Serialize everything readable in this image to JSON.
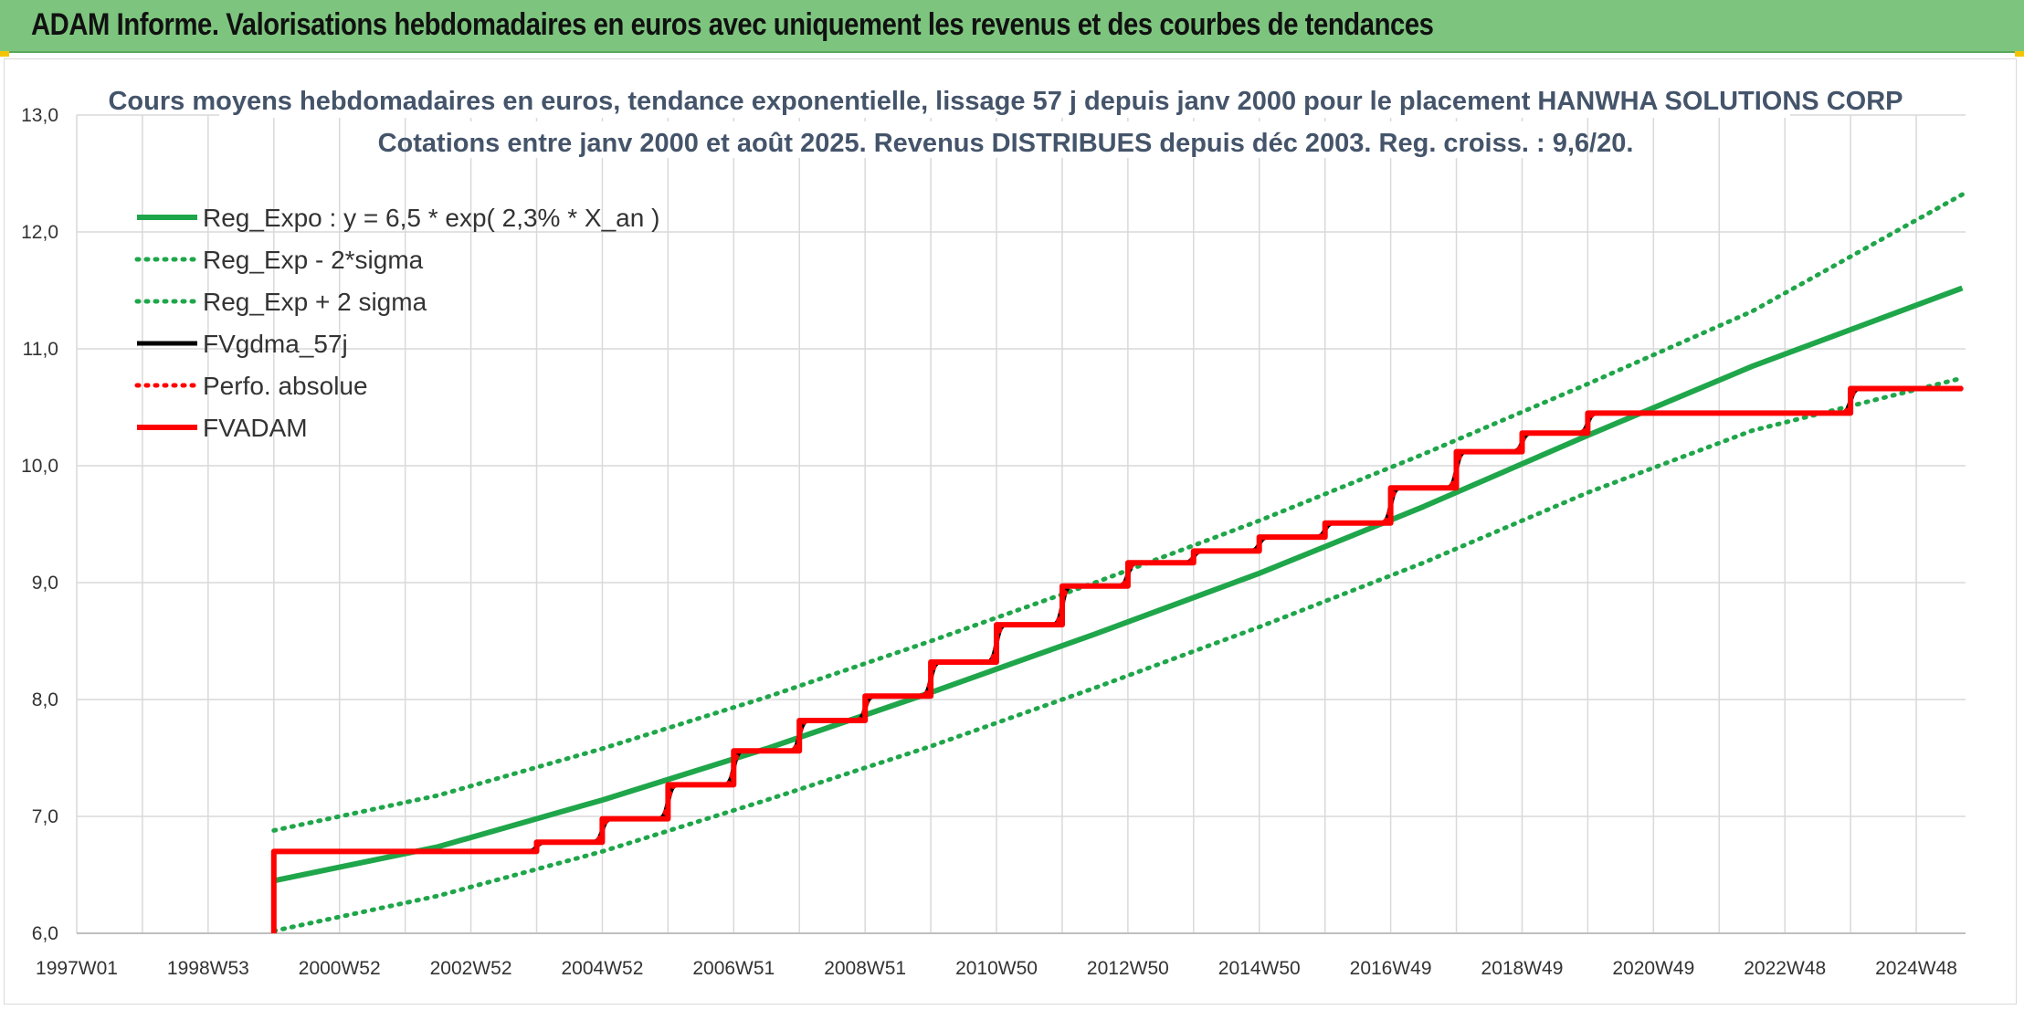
{
  "page": {
    "header_title": "ADAM Informe. Valorisations hebdomadaires en euros avec uniquement les revenus et des courbes de tendances"
  },
  "colors": {
    "header_bg": "#7dc57e",
    "reg_expo": "#1fa64a",
    "fvgdma": "#000000",
    "fvadam": "#ff0000",
    "perfo": "#ff0000",
    "grid": "#d9d9d9",
    "title": "#44546a"
  },
  "chart_data": {
    "type": "line",
    "title_line1": "Cours moyens hebdomadaires en euros, tendance exponentielle, lissage 57 j depuis janv 2000 pour le placement HANWHA SOLUTIONS CORP",
    "title_line2": "Cotations entre janv 2000 et août 2025. Revenus DISTRIBUES depuis déc 2003. Reg. croiss. : 9,6/20.",
    "xlabel": "",
    "ylabel": "",
    "ylim": [
      6.0,
      13.0
    ],
    "y_ticks": [
      "6,0",
      "7,0",
      "8,0",
      "9,0",
      "10,0",
      "11,0",
      "12,0",
      "13,0"
    ],
    "xlim": [
      1997.0,
      2025.75
    ],
    "x_ticks": [
      {
        "label": "1997W01",
        "x": 1997.0
      },
      {
        "label": "1998W53",
        "x": 1999.0
      },
      {
        "label": "2000W52",
        "x": 2001.0
      },
      {
        "label": "2002W52",
        "x": 2003.0
      },
      {
        "label": "2004W52",
        "x": 2005.0
      },
      {
        "label": "2006W51",
        "x": 2007.0
      },
      {
        "label": "2008W51",
        "x": 2009.0
      },
      {
        "label": "2010W50",
        "x": 2011.0
      },
      {
        "label": "2012W50",
        "x": 2013.0
      },
      {
        "label": "2014W50",
        "x": 2015.0
      },
      {
        "label": "2016W49",
        "x": 2017.0
      },
      {
        "label": "2018W49",
        "x": 2019.0
      },
      {
        "label": "2020W49",
        "x": 2021.0
      },
      {
        "label": "2022W48",
        "x": 2023.0
      },
      {
        "label": "2024W48",
        "x": 2025.0
      }
    ],
    "grid": true,
    "legend_position": "top-left",
    "series": [
      {
        "name": "Reg_Expo : y = 6,5 * exp( 2,3% *  X_an )",
        "style": "solid-thick",
        "x": [
          2000.0,
          2002.5,
          2005.0,
          2007.5,
          2010.0,
          2012.5,
          2015.0,
          2017.5,
          2020.0,
          2022.5,
          2025.7
        ],
        "values": [
          6.45,
          6.74,
          7.14,
          7.58,
          8.06,
          8.56,
          9.08,
          9.65,
          10.26,
          10.85,
          11.52
        ]
      },
      {
        "name": "Reg_Exp - 2*sigma",
        "style": "dotted",
        "x": [
          2000.0,
          2002.5,
          2005.0,
          2007.5,
          2010.0,
          2012.5,
          2015.0,
          2017.5,
          2020.0,
          2022.5,
          2025.7
        ],
        "values": [
          6.02,
          6.32,
          6.7,
          7.14,
          7.6,
          8.1,
          8.62,
          9.17,
          9.77,
          10.3,
          10.75
        ]
      },
      {
        "name": "Reg_Exp + 2 sigma",
        "style": "dotted",
        "x": [
          2000.0,
          2002.5,
          2005.0,
          2007.5,
          2010.0,
          2012.5,
          2015.0,
          2017.5,
          2020.0,
          2022.5,
          2025.7
        ],
        "values": [
          6.88,
          7.18,
          7.58,
          8.02,
          8.5,
          9.0,
          9.53,
          10.1,
          10.7,
          11.32,
          12.32
        ]
      },
      {
        "name": "FVgdma_57j",
        "style": "smoothed-step",
        "x": [
          2000.0,
          2004.0,
          2005.0,
          2006.0,
          2007.0,
          2008.0,
          2009.0,
          2010.0,
          2011.0,
          2012.0,
          2013.0,
          2014.0,
          2015.0,
          2016.0,
          2017.0,
          2018.0,
          2019.0,
          2020.0,
          2024.0,
          2025.7
        ],
        "values": [
          6.7,
          6.78,
          6.98,
          7.27,
          7.56,
          7.82,
          8.03,
          8.32,
          8.64,
          8.97,
          9.17,
          9.27,
          9.39,
          9.51,
          9.81,
          10.12,
          10.28,
          10.45,
          10.66,
          10.66
        ]
      },
      {
        "name": "Perfo. absolue",
        "style": "dotted",
        "x": [
          2000.0,
          2004.0,
          2005.0,
          2006.0,
          2007.0,
          2008.0,
          2009.0,
          2010.0,
          2011.0,
          2012.0,
          2013.0,
          2014.0,
          2015.0,
          2016.0,
          2017.0,
          2018.0,
          2019.0,
          2020.0,
          2024.0,
          2025.7
        ],
        "values": [
          6.7,
          6.78,
          6.98,
          7.27,
          7.56,
          7.82,
          8.03,
          8.32,
          8.64,
          8.97,
          9.17,
          9.27,
          9.39,
          9.51,
          9.81,
          10.12,
          10.28,
          10.45,
          10.66,
          10.66
        ]
      },
      {
        "name": "FVADAM",
        "style": "step-thick",
        "start_x": 2000.0,
        "start_value": 6.0,
        "x": [
          2000.0,
          2004.0,
          2005.0,
          2006.0,
          2007.0,
          2008.0,
          2009.0,
          2010.0,
          2011.0,
          2012.0,
          2013.0,
          2014.0,
          2015.0,
          2016.0,
          2017.0,
          2018.0,
          2019.0,
          2020.0,
          2024.0,
          2025.7
        ],
        "values": [
          6.7,
          6.78,
          6.98,
          7.27,
          7.56,
          7.82,
          8.03,
          8.32,
          8.64,
          8.97,
          9.17,
          9.27,
          9.39,
          9.51,
          9.81,
          10.12,
          10.28,
          10.45,
          10.66,
          10.66
        ]
      }
    ]
  }
}
